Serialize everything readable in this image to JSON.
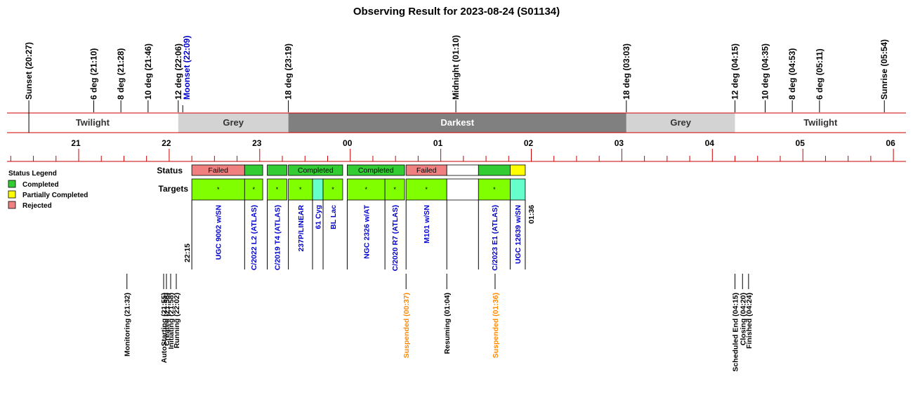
{
  "title": "Observing Result for 2023-08-24 (S01134)",
  "colors": {
    "axis": "#cc0000",
    "completed": "#33cc33",
    "partially_completed": "#ffff00",
    "rejected": "#f08080",
    "twilight": "#ffffff",
    "grey": "#d3d3d3",
    "darkest": "#808080",
    "target_completed": "#80ff00",
    "target_other": "#66ffcc",
    "blue_text": "#0000cc",
    "orange_text": "#ff8800"
  },
  "chart_data": {
    "type": "timeline",
    "time_axis": {
      "start": "21:20",
      "end": "06:10",
      "hour_ticks": [
        "21",
        "22",
        "23",
        "00",
        "01",
        "02",
        "03",
        "04",
        "05",
        "06"
      ]
    },
    "sky_events": [
      {
        "label": "Sunset (20:27)",
        "time": "20:27",
        "color": "black"
      },
      {
        "label": "6 deg (21:10)",
        "time": "21:10",
        "color": "black"
      },
      {
        "label": "8 deg (21:28)",
        "time": "21:28",
        "color": "black"
      },
      {
        "label": "10 deg (21:46)",
        "time": "21:46",
        "color": "black"
      },
      {
        "label": "12 deg (22:06)",
        "time": "22:06",
        "color": "black"
      },
      {
        "label": "Moonset (22:09)",
        "time": "22:09",
        "color": "blue"
      },
      {
        "label": "18 deg (23:19)",
        "time": "23:19",
        "color": "black"
      },
      {
        "label": "Midnight (01:10)",
        "time": "01:10",
        "color": "black"
      },
      {
        "label": "18 deg (03:03)",
        "time": "03:03",
        "color": "black"
      },
      {
        "label": "12 deg (04:15)",
        "time": "04:15",
        "color": "black"
      },
      {
        "label": "10 deg (04:35)",
        "time": "04:35",
        "color": "black"
      },
      {
        "label": "8 deg (04:53)",
        "time": "04:53",
        "color": "black"
      },
      {
        "label": "6 deg (05:11)",
        "time": "05:11",
        "color": "black"
      },
      {
        "label": "Sunrise (05:54)",
        "time": "05:54",
        "color": "black"
      }
    ],
    "sky_bands": [
      {
        "label": "Twilight",
        "start": "21:20",
        "end": "22:06",
        "shade": "twilight"
      },
      {
        "label": "Grey",
        "start": "22:06",
        "end": "23:19",
        "shade": "grey"
      },
      {
        "label": "Darkest",
        "start": "23:19",
        "end": "03:03",
        "shade": "darkest"
      },
      {
        "label": "Grey",
        "start": "03:03",
        "end": "04:15",
        "shade": "grey"
      },
      {
        "label": "Twilight",
        "start": "04:15",
        "end": "06:10",
        "shade": "twilight"
      }
    ],
    "status_legend": {
      "title": "Status Legend",
      "items": [
        {
          "label": "Completed",
          "color": "completed"
        },
        {
          "label": "Partially Completed",
          "color": "partially_completed"
        },
        {
          "label": "Rejected",
          "color": "rejected"
        }
      ]
    },
    "row_labels": {
      "status": "Status",
      "targets": "Targets"
    },
    "status_segments": [
      {
        "start": "22:15",
        "end": "22:50",
        "status": "rejected",
        "text": "Failed"
      },
      {
        "start": "22:50",
        "end": "23:02",
        "status": "completed",
        "text": ""
      },
      {
        "start": "23:05",
        "end": "23:18",
        "status": "completed",
        "text": ""
      },
      {
        "start": "23:19",
        "end": "23:55",
        "status": "completed",
        "text": "Completed"
      },
      {
        "start": "23:58",
        "end": "00:36",
        "status": "completed",
        "text": "Completed"
      },
      {
        "start": "00:37",
        "end": "01:04",
        "status": "rejected",
        "text": "Failed"
      },
      {
        "start": "01:04",
        "end": "01:25",
        "status": "none",
        "text": ""
      },
      {
        "start": "01:25",
        "end": "01:46",
        "status": "completed",
        "text": ""
      },
      {
        "start": "01:46",
        "end": "01:56",
        "status": "partially_completed",
        "text": ""
      }
    ],
    "targets": [
      {
        "name": "UGC 9002 w/SN",
        "start": "22:15",
        "end": "22:50",
        "mark": "*",
        "shade": "target_completed"
      },
      {
        "name": "C/2022 L2 (ATLAS)",
        "start": "22:50",
        "end": "23:02",
        "mark": "*",
        "shade": "target_completed"
      },
      {
        "name": "C/2019 T4 (ATLAS)",
        "start": "23:05",
        "end": "23:18",
        "mark": "*",
        "shade": "target_completed"
      },
      {
        "name": "237P/LINEAR",
        "start": "23:19",
        "end": "23:35",
        "mark": "*",
        "shade": "target_completed"
      },
      {
        "name": "61 Cyg",
        "start": "23:35",
        "end": "23:42",
        "mark": "",
        "shade": "target_other"
      },
      {
        "name": "BL Lac",
        "start": "23:42",
        "end": "23:55",
        "mark": "*",
        "shade": "target_completed"
      },
      {
        "name": "NGC 2326 w/AT",
        "start": "23:58",
        "end": "00:23",
        "mark": "*",
        "shade": "target_completed"
      },
      {
        "name": "C/2020 R7 (ATLAS)",
        "start": "00:23",
        "end": "00:36",
        "mark": "*",
        "shade": "target_completed"
      },
      {
        "name": "M101 w/SN",
        "start": "00:37",
        "end": "01:04",
        "mark": "*",
        "shade": "target_completed"
      },
      {
        "name": "",
        "start": "01:04",
        "end": "01:25",
        "mark": "",
        "shade": "none"
      },
      {
        "name": "C/2023 E1 (ATLAS)",
        "start": "01:25",
        "end": "01:46",
        "mark": "*",
        "shade": "target_completed"
      },
      {
        "name": "UGC 12639 w/SN",
        "start": "01:46",
        "end": "01:56",
        "mark": "",
        "shade": "target_other"
      }
    ],
    "window_labels": {
      "start": "22:15",
      "end": "01:36"
    },
    "system_events": [
      {
        "label": "Monitoring (21:32)",
        "time": "21:32",
        "color": "black"
      },
      {
        "label": "AutoStarting (21:55)",
        "time": "21:55",
        "color": "black"
      },
      {
        "label": "Created (21:56)",
        "time": "21:56",
        "color": "black"
      },
      {
        "label": "Initiating (21:58)",
        "time": "21:58",
        "color": "black"
      },
      {
        "label": "Running (22:02)",
        "time": "22:02",
        "color": "black"
      },
      {
        "label": "Suspended (00:37)",
        "time": "00:37",
        "color": "orange"
      },
      {
        "label": "Resuming (01:04)",
        "time": "01:04",
        "color": "black"
      },
      {
        "label": "Suspended (01:36)",
        "time": "01:36",
        "color": "orange"
      },
      {
        "label": "Scheduled End (04:15)",
        "time": "04:15",
        "color": "black"
      },
      {
        "label": "Closing (04:20)",
        "time": "04:20",
        "color": "black"
      },
      {
        "label": "Finished (04:24)",
        "time": "04:24",
        "color": "black"
      }
    ]
  }
}
